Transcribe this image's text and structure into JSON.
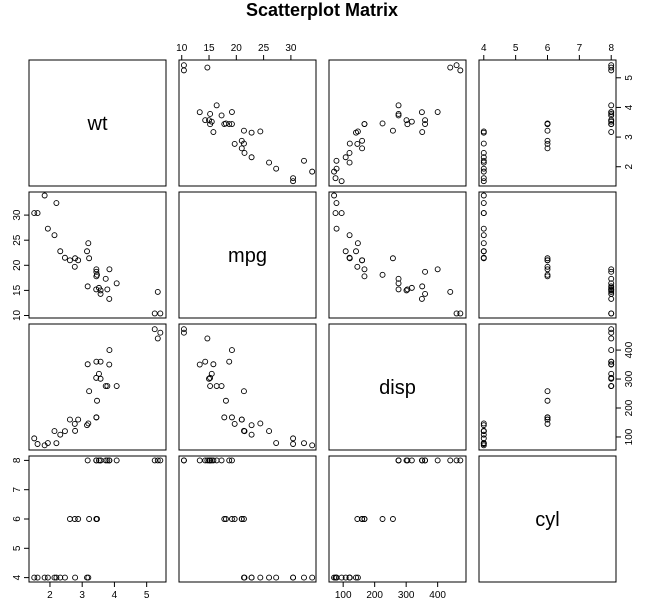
{
  "chart_data": {
    "type": "scatter",
    "title": "Scatterplot Matrix",
    "variables": [
      {
        "name": "wt",
        "range": [
          1.35,
          5.6
        ],
        "ticks": [
          2,
          3,
          4,
          5
        ],
        "tick_labels": [
          "2",
          "3",
          "4",
          "5"
        ]
      },
      {
        "name": "mpg",
        "range": [
          9.5,
          34.6
        ],
        "ticks": [
          10,
          15,
          20,
          25,
          30
        ],
        "tick_labels": [
          "10",
          "15",
          "20",
          "25",
          "30"
        ]
      },
      {
        "name": "disp",
        "range": [
          55,
          490
        ],
        "ticks": [
          100,
          200,
          300,
          400
        ],
        "tick_labels": [
          "100",
          "200",
          "300",
          "400"
        ]
      },
      {
        "name": "cyl",
        "range": [
          3.85,
          8.15
        ],
        "ticks": [
          4,
          5,
          6,
          7,
          8
        ],
        "tick_labels": [
          "4",
          "5",
          "6",
          "7",
          "8"
        ]
      }
    ],
    "records": [
      {
        "wt": 2.62,
        "mpg": 21.0,
        "disp": 160.0,
        "cyl": 6
      },
      {
        "wt": 2.875,
        "mpg": 21.0,
        "disp": 160.0,
        "cyl": 6
      },
      {
        "wt": 2.32,
        "mpg": 22.8,
        "disp": 108.0,
        "cyl": 4
      },
      {
        "wt": 3.215,
        "mpg": 21.4,
        "disp": 258.0,
        "cyl": 6
      },
      {
        "wt": 3.44,
        "mpg": 18.7,
        "disp": 360.0,
        "cyl": 8
      },
      {
        "wt": 3.46,
        "mpg": 18.1,
        "disp": 225.0,
        "cyl": 6
      },
      {
        "wt": 3.57,
        "mpg": 14.3,
        "disp": 360.0,
        "cyl": 8
      },
      {
        "wt": 3.19,
        "mpg": 24.4,
        "disp": 146.7,
        "cyl": 4
      },
      {
        "wt": 3.15,
        "mpg": 22.8,
        "disp": 140.8,
        "cyl": 4
      },
      {
        "wt": 3.44,
        "mpg": 19.2,
        "disp": 167.6,
        "cyl": 6
      },
      {
        "wt": 3.44,
        "mpg": 17.8,
        "disp": 167.6,
        "cyl": 6
      },
      {
        "wt": 4.07,
        "mpg": 16.4,
        "disp": 275.8,
        "cyl": 8
      },
      {
        "wt": 3.73,
        "mpg": 17.3,
        "disp": 275.8,
        "cyl": 8
      },
      {
        "wt": 3.78,
        "mpg": 15.2,
        "disp": 275.8,
        "cyl": 8
      },
      {
        "wt": 5.25,
        "mpg": 10.4,
        "disp": 472.0,
        "cyl": 8
      },
      {
        "wt": 5.424,
        "mpg": 10.4,
        "disp": 460.0,
        "cyl": 8
      },
      {
        "wt": 5.345,
        "mpg": 14.7,
        "disp": 440.0,
        "cyl": 8
      },
      {
        "wt": 2.2,
        "mpg": 32.4,
        "disp": 78.7,
        "cyl": 4
      },
      {
        "wt": 1.615,
        "mpg": 30.4,
        "disp": 75.7,
        "cyl": 4
      },
      {
        "wt": 1.835,
        "mpg": 33.9,
        "disp": 71.1,
        "cyl": 4
      },
      {
        "wt": 2.465,
        "mpg": 21.5,
        "disp": 120.1,
        "cyl": 4
      },
      {
        "wt": 3.52,
        "mpg": 15.5,
        "disp": 318.0,
        "cyl": 8
      },
      {
        "wt": 3.435,
        "mpg": 15.2,
        "disp": 304.0,
        "cyl": 8
      },
      {
        "wt": 3.84,
        "mpg": 13.3,
        "disp": 350.0,
        "cyl": 8
      },
      {
        "wt": 3.845,
        "mpg": 19.2,
        "disp": 400.0,
        "cyl": 8
      },
      {
        "wt": 1.935,
        "mpg": 27.3,
        "disp": 79.0,
        "cyl": 4
      },
      {
        "wt": 2.14,
        "mpg": 26.0,
        "disp": 120.3,
        "cyl": 4
      },
      {
        "wt": 1.513,
        "mpg": 30.4,
        "disp": 95.1,
        "cyl": 4
      },
      {
        "wt": 3.17,
        "mpg": 15.8,
        "disp": 351.0,
        "cyl": 8
      },
      {
        "wt": 2.77,
        "mpg": 19.7,
        "disp": 145.0,
        "cyl": 6
      },
      {
        "wt": 3.57,
        "mpg": 15.0,
        "disp": 301.0,
        "cyl": 8
      },
      {
        "wt": 2.78,
        "mpg": 21.4,
        "disp": 121.0,
        "cyl": 4
      }
    ],
    "grid": false,
    "legend": "none"
  }
}
